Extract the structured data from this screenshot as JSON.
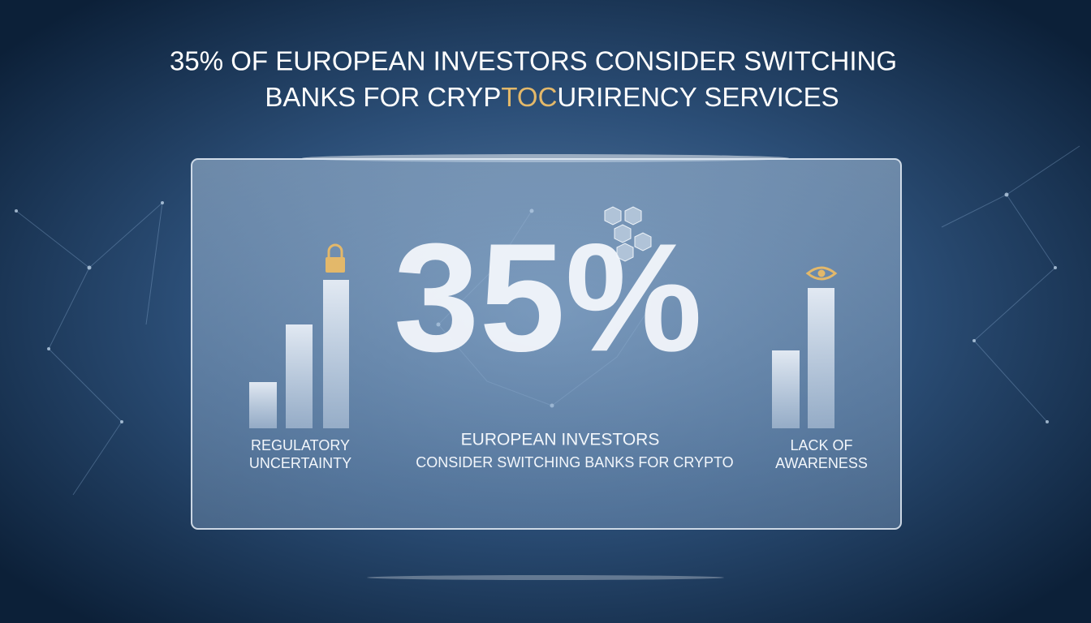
{
  "title": {
    "line1": "35% OF EUROPEAN INVESTORS CONSIDER SWITCHING",
    "line2": [
      "BANKS FOR CRYP",
      "TOC",
      "URIRENCY SERVICES"
    ]
  },
  "stat": "35%",
  "left_label": [
    "REGULATORY",
    "UNCERTAINTY"
  ],
  "center_label": [
    "EUROPEAN INVESTORS",
    "CONSIDER SWITCHING BANKS FOR CRYPTO"
  ],
  "right_label": [
    "LACK OF",
    "AWARENESS"
  ]
}
